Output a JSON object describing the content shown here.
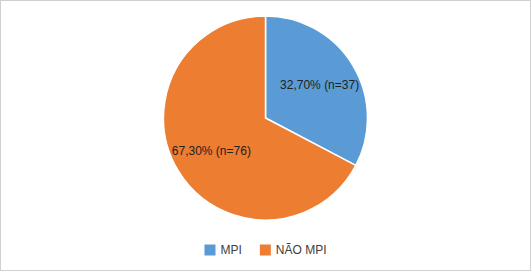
{
  "chart_data": {
    "type": "pie",
    "categories": [
      "MPI",
      "NÃO MPI"
    ],
    "values": [
      32.7,
      67.3
    ],
    "value_labels": [
      "32,70% (n=37)",
      "67,30% (n=76)"
    ],
    "colors": [
      "#5B9BD5",
      "#ED7D31"
    ],
    "data_labels": true,
    "legend": "bottom"
  }
}
